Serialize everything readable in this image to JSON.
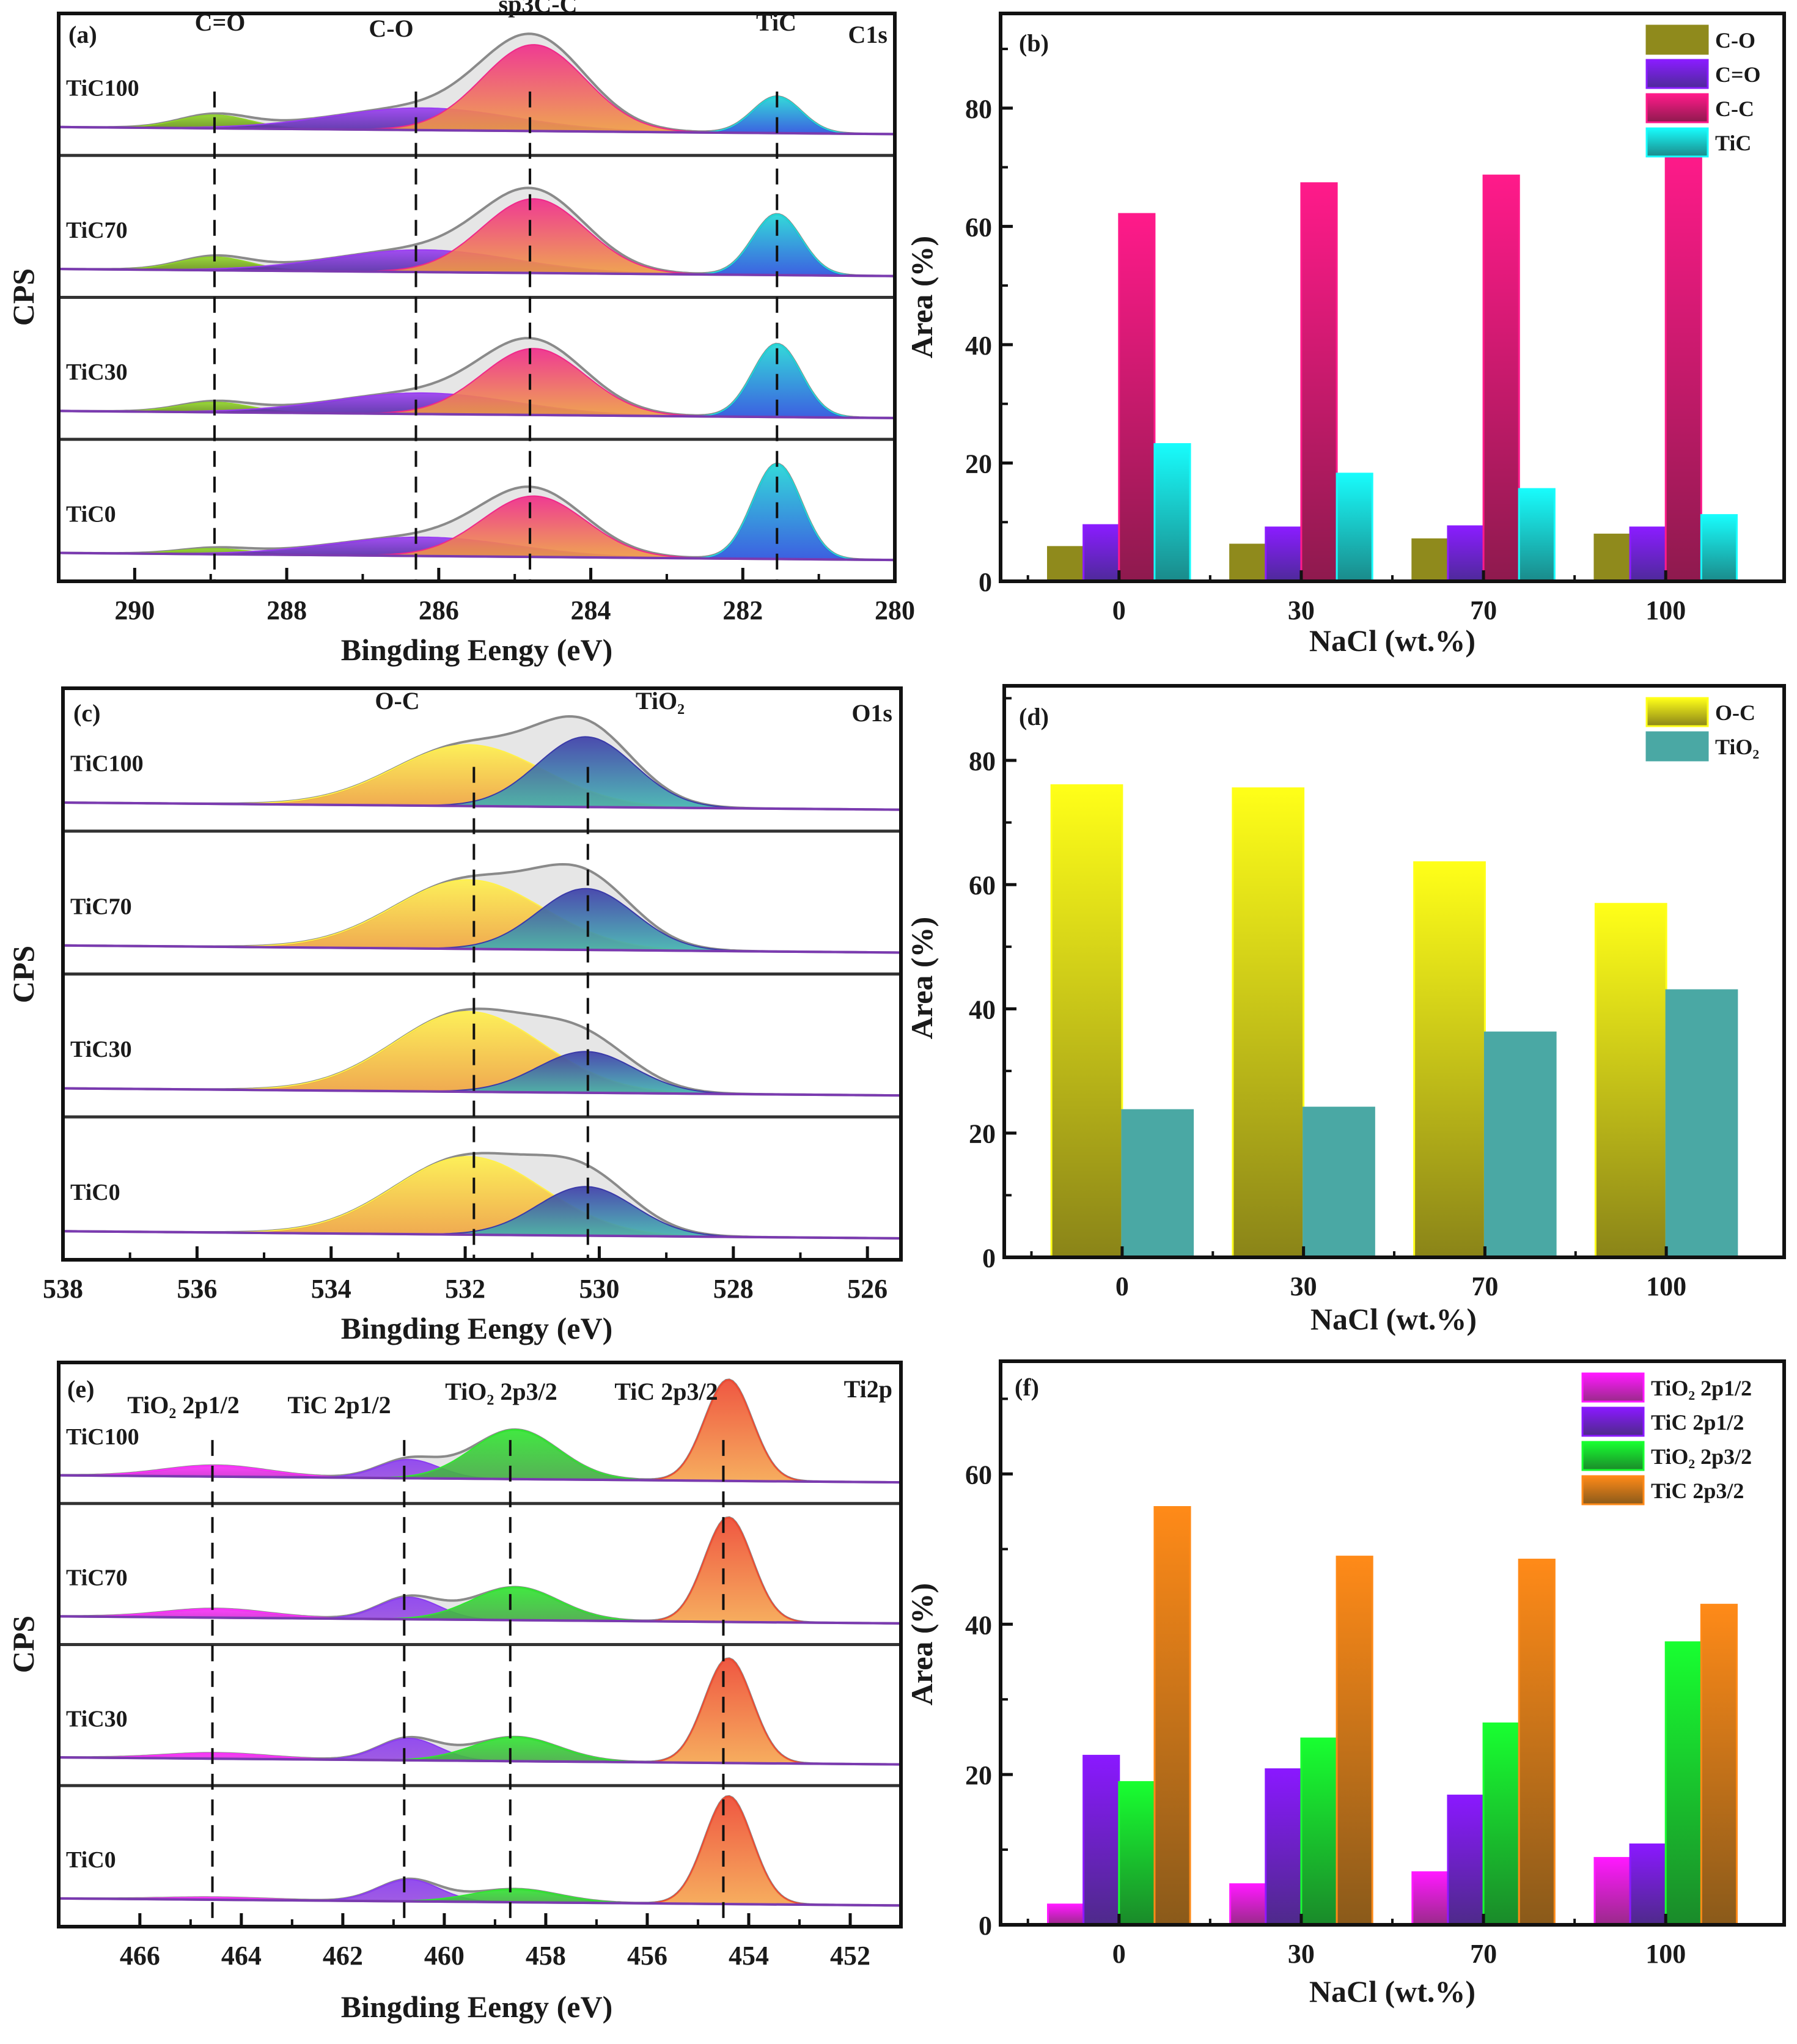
{
  "chart_data": [
    {
      "id": "a",
      "type": "area",
      "panel_label": "(a)",
      "title": "C1s",
      "xlabel": "Bingding Eengy (eV)",
      "ylabel": "CPS",
      "xlim": [
        291.0,
        280.0
      ],
      "xticks": [
        290,
        288,
        286,
        284,
        282,
        280
      ],
      "x_reversed": true,
      "peak_labels": [
        {
          "text": "C=O",
          "position_ev": 288.95
        },
        {
          "text": "C-O",
          "position_ev": 286.3
        },
        {
          "text": "sp3C-C",
          "position_ev": 284.8
        },
        {
          "text": "TiC",
          "position_ev": 281.55
        }
      ],
      "components": [
        {
          "name": "C=O",
          "center": 288.95,
          "fwhm": 1.1,
          "color_top": "#8fd22a",
          "color_bottom": "#5a7a10"
        },
        {
          "name": "C-O",
          "center": 286.2,
          "fwhm": 2.8,
          "color_top": "#9a3cf2",
          "color_bottom": "#4a2a9a"
        },
        {
          "name": "C-C",
          "center": 284.75,
          "fwhm": 1.6,
          "color_top": "#f0288a",
          "color_bottom": "#f0a040"
        },
        {
          "name": "TiC",
          "center": 281.55,
          "fwhm": 0.75,
          "color_top": "#20d8d8",
          "color_bottom": "#2a50e0"
        }
      ],
      "dashed_lines_ev": [
        288.95,
        286.3,
        284.8,
        281.55
      ],
      "samples": [
        {
          "name": "TiC100",
          "heights": [
            0.12,
            0.2,
            0.78,
            0.33
          ]
        },
        {
          "name": "TiC70",
          "heights": [
            0.12,
            0.2,
            0.67,
            0.55
          ]
        },
        {
          "name": "TiC30",
          "heights": [
            0.09,
            0.19,
            0.6,
            0.66
          ]
        },
        {
          "name": "TiC0",
          "heights": [
            0.05,
            0.17,
            0.55,
            0.86
          ]
        }
      ]
    },
    {
      "id": "b",
      "type": "bar",
      "panel_label": "(b)",
      "xlabel": "NaCl (wt.%)",
      "ylabel": "Area (%)",
      "ylim": [
        0,
        96
      ],
      "yticks": [
        0,
        20,
        40,
        60,
        80
      ],
      "categories": [
        "0",
        "30",
        "70",
        "100"
      ],
      "legend_position": "top-right",
      "series": [
        {
          "name": "C-O",
          "values": [
            5.8,
            6.2,
            7.1,
            7.9
          ],
          "color_top": "#8f8a1c",
          "color_bottom": "#8f8a1c"
        },
        {
          "name": "C=O",
          "values": [
            9.5,
            9.1,
            9.3,
            9.1
          ],
          "color_top": "#8a1cff",
          "color_bottom": "#4e2a9a"
        },
        {
          "name": "C-C",
          "values": [
            62.1,
            67.3,
            68.6,
            72.7
          ],
          "color_top": "#ff1a8a",
          "color_bottom": "#8e1a4e"
        },
        {
          "name": "TiC",
          "values": [
            23.2,
            18.2,
            15.6,
            11.2
          ],
          "color_top": "#18fcfc",
          "color_bottom": "#1a8a8a"
        }
      ]
    },
    {
      "id": "c",
      "type": "area",
      "panel_label": "(c)",
      "title": "O1s",
      "xlabel": "Bingding Eengy (eV)",
      "ylabel": "CPS",
      "xlim": [
        538.0,
        525.5
      ],
      "xticks": [
        538,
        536,
        534,
        532,
        530,
        528,
        526
      ],
      "x_reversed": true,
      "peak_labels": [
        {
          "text": "O-C",
          "position_ev": 531.95
        },
        {
          "text": "TiO₂",
          "position_ev": 530.2
        }
      ],
      "components": [
        {
          "name": "O-C",
          "center": 531.95,
          "fwhm": 2.6,
          "color_top": "#fff04a",
          "color_bottom": "#f0a040"
        },
        {
          "name": "TiO2",
          "center": 530.2,
          "fwhm": 1.7,
          "color_top": "#3a3aa8",
          "color_bottom": "#40b8b0"
        }
      ],
      "dashed_lines_ev": [
        531.87,
        530.17
      ],
      "samples": [
        {
          "name": "TiC100",
          "heights": [
            0.55,
            0.63
          ]
        },
        {
          "name": "TiC70",
          "heights": [
            0.62,
            0.55
          ]
        },
        {
          "name": "TiC30",
          "heights": [
            0.72,
            0.37
          ]
        },
        {
          "name": "TiC0",
          "heights": [
            0.7,
            0.44
          ]
        }
      ]
    },
    {
      "id": "d",
      "type": "bar",
      "panel_label": "(d)",
      "xlabel": "NaCl (wt.%)",
      "ylabel": "Area (%)",
      "ylim": [
        0,
        92
      ],
      "yticks": [
        0,
        20,
        40,
        60,
        80
      ],
      "categories": [
        "0",
        "30",
        "70",
        "100"
      ],
      "legend_position": "top-right",
      "series": [
        {
          "name": "O-C",
          "values": [
            76.0,
            75.5,
            63.6,
            56.9
          ],
          "color_top": "#ffff18",
          "color_bottom": "#8a8418"
        },
        {
          "name": "TiO₂",
          "values": [
            23.7,
            24.1,
            36.2,
            43.0
          ],
          "color_top": "#4aa8a4",
          "color_bottom": "#4aa8a4"
        }
      ]
    },
    {
      "id": "e",
      "type": "area",
      "panel_label": "(e)",
      "title": "Ti2p",
      "xlabel": "Bingding Eengy (eV)",
      "ylabel": "CPS",
      "xlim": [
        467.6,
        451.0
      ],
      "xticks": [
        466,
        464,
        462,
        460,
        458,
        456,
        454,
        452
      ],
      "x_reversed": true,
      "peak_labels": [
        {
          "text": "TiO₂ 2p1/2",
          "position_ev": 464.5
        },
        {
          "text": "TiC 2p1/2",
          "position_ev": 460.7
        },
        {
          "text": "TiO₂ 2p3/2",
          "position_ev": 458.6
        },
        {
          "text": "TiC 2p3/2",
          "position_ev": 454.4
        }
      ],
      "components": [
        {
          "name": "TiO2 2p1/2",
          "center": 464.5,
          "fwhm": 2.4,
          "color_top": "#ff30ff",
          "color_bottom": "#c030c0"
        },
        {
          "name": "TiC 2p1/2",
          "center": 460.7,
          "fwhm": 1.4,
          "color_top": "#8a3cf0",
          "color_bottom": "#9a50e0"
        },
        {
          "name": "TiO2 2p3/2",
          "center": 458.6,
          "fwhm": 2.0,
          "color_top": "#30e830",
          "color_bottom": "#48a848"
        },
        {
          "name": "TiC 2p3/2",
          "center": 454.4,
          "fwhm": 1.1,
          "color_top": "#f04830",
          "color_bottom": "#f8a850"
        }
      ],
      "dashed_lines_ev": [
        464.57,
        460.79,
        458.7,
        454.5
      ],
      "samples": [
        {
          "name": "TiC100",
          "heights": [
            0.1,
            0.17,
            0.45,
            0.92
          ]
        },
        {
          "name": "TiC70",
          "heights": [
            0.08,
            0.2,
            0.3,
            0.95
          ]
        },
        {
          "name": "TiC30",
          "heights": [
            0.05,
            0.2,
            0.22,
            0.95
          ]
        },
        {
          "name": "TiC0",
          "heights": [
            0.02,
            0.2,
            0.12,
            0.98
          ]
        }
      ]
    },
    {
      "id": "f",
      "type": "bar",
      "panel_label": "(f)",
      "xlabel": "NaCl (wt.%)",
      "ylabel": "Area (%)",
      "ylim": [
        0,
        75
      ],
      "yticks": [
        0,
        20,
        40,
        60
      ],
      "categories": [
        "0",
        "30",
        "70",
        "100"
      ],
      "legend_position": "top-right",
      "series": [
        {
          "name": "TiO₂ 2p1/2",
          "values": [
            2.7,
            5.4,
            7.0,
            8.9
          ],
          "color_top": "#ff18ff",
          "color_bottom": "#9a2a8a"
        },
        {
          "name": "TiC  2p1/2",
          "values": [
            22.5,
            20.7,
            17.2,
            10.7
          ],
          "color_top": "#8a18ff",
          "color_bottom": "#4e2a8a"
        },
        {
          "name": "TiO₂ 2p3/2",
          "values": [
            19.0,
            24.8,
            26.8,
            37.6
          ],
          "color_top": "#18ff30",
          "color_bottom": "#1a8a2a"
        },
        {
          "name": "TiC  2p3/2",
          "values": [
            55.6,
            49.0,
            48.6,
            42.6
          ],
          "color_top": "#ff8a18",
          "color_bottom": "#8a5a1a"
        }
      ]
    }
  ]
}
